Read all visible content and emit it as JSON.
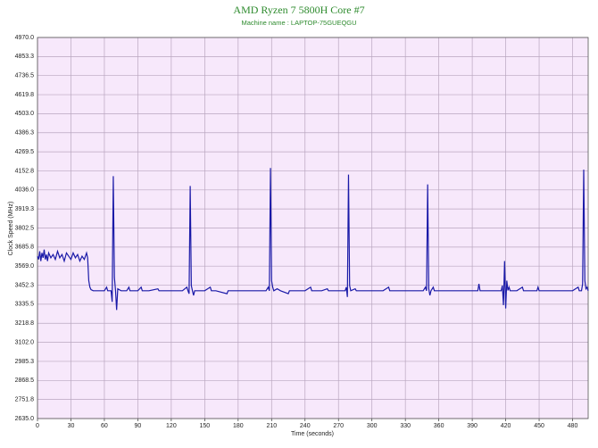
{
  "chart_data": {
    "type": "line",
    "title": "AMD Ryzen 7 5800H Core #7",
    "subtitle": "Machine name : LAPTOP-75GUEQGU",
    "x_label": "Time (seconds)",
    "y_label": "Clock Speed (MHz)",
    "xlim": [
      0,
      494
    ],
    "ylim": [
      2635,
      4970
    ],
    "xticks": [
      0,
      30,
      60,
      90,
      120,
      150,
      180,
      210,
      240,
      270,
      300,
      330,
      360,
      390,
      420,
      450,
      480
    ],
    "yticks": [
      {
        "value": 2635,
        "label": "2635.0"
      },
      2751.8,
      2868.5,
      2985.3,
      {
        "value": 3102,
        "label": "3102.0"
      },
      3218.8,
      3335.5,
      3452.3,
      {
        "value": 3569,
        "label": "3569.0"
      },
      3685.8,
      3802.5,
      3919.3,
      {
        "value": 4036,
        "label": "4036.0"
      },
      4152.8,
      4269.5,
      4386.3,
      {
        "value": 4503,
        "label": "4503.0"
      },
      4619.8,
      4736.5,
      4853.3,
      {
        "value": 4970,
        "label": "4970.0"
      }
    ],
    "grid": true,
    "background": "#f7e8fb",
    "x": [
      0,
      1,
      2,
      3,
      4,
      5,
      6,
      7,
      8,
      9,
      10,
      12,
      14,
      16,
      18,
      20,
      22,
      24,
      26,
      28,
      30,
      32,
      34,
      36,
      38,
      40,
      42,
      44,
      45,
      46,
      47,
      48,
      50,
      55,
      60,
      62,
      63,
      66,
      67,
      68,
      69,
      70,
      71,
      72,
      75,
      80,
      82,
      83,
      90,
      93,
      94,
      100,
      108,
      109,
      120,
      130,
      134,
      135,
      136,
      137,
      138,
      139,
      140,
      141,
      150,
      155,
      156,
      160,
      170,
      171,
      180,
      190,
      200,
      205,
      207,
      208,
      209,
      210,
      211,
      212,
      215,
      218,
      225,
      226,
      230,
      240,
      245,
      246,
      255,
      260,
      261,
      270,
      276,
      277,
      278,
      279,
      280,
      281,
      285,
      286,
      290,
      300,
      310,
      315,
      316,
      320,
      330,
      340,
      346,
      348,
      349,
      350,
      351,
      352,
      353,
      355,
      356,
      360,
      370,
      380,
      390,
      395,
      396,
      397,
      400,
      405,
      410,
      416,
      417,
      418,
      419,
      420,
      421,
      422,
      423,
      424,
      430,
      435,
      436,
      440,
      448,
      449,
      450,
      460,
      470,
      480,
      485,
      486,
      488,
      489,
      490,
      491,
      492,
      493,
      494
    ],
    "series": [
      {
        "name": "Core #7",
        "color": "#1a1aa8",
        "values": [
          3630,
          3610,
          3660,
          3600,
          3650,
          3620,
          3670,
          3610,
          3640,
          3600,
          3650,
          3620,
          3640,
          3610,
          3660,
          3620,
          3640,
          3600,
          3650,
          3630,
          3610,
          3650,
          3620,
          3640,
          3600,
          3630,
          3610,
          3650,
          3620,
          3480,
          3440,
          3425,
          3418,
          3418,
          3418,
          3440,
          3418,
          3418,
          3350,
          4120,
          3500,
          3418,
          3300,
          3430,
          3418,
          3418,
          3440,
          3418,
          3418,
          3440,
          3418,
          3418,
          3430,
          3418,
          3418,
          3418,
          3440,
          3418,
          3400,
          4060,
          3450,
          3418,
          3390,
          3418,
          3418,
          3440,
          3418,
          3418,
          3400,
          3418,
          3418,
          3418,
          3418,
          3418,
          3440,
          3418,
          4170,
          3480,
          3440,
          3418,
          3430,
          3418,
          3400,
          3418,
          3418,
          3418,
          3440,
          3418,
          3418,
          3430,
          3418,
          3418,
          3418,
          3440,
          3380,
          4130,
          3450,
          3418,
          3430,
          3418,
          3418,
          3418,
          3418,
          3440,
          3418,
          3418,
          3418,
          3418,
          3418,
          3440,
          3418,
          4070,
          3430,
          3390,
          3418,
          3440,
          3418,
          3418,
          3418,
          3418,
          3418,
          3418,
          3460,
          3418,
          3418,
          3418,
          3418,
          3418,
          3450,
          3330,
          3600,
          3310,
          3480,
          3420,
          3440,
          3418,
          3418,
          3440,
          3418,
          3418,
          3418,
          3440,
          3418,
          3418,
          3418,
          3418,
          3440,
          3418,
          3418,
          3460,
          4160,
          3480,
          3430,
          3440,
          3418
        ]
      }
    ]
  }
}
